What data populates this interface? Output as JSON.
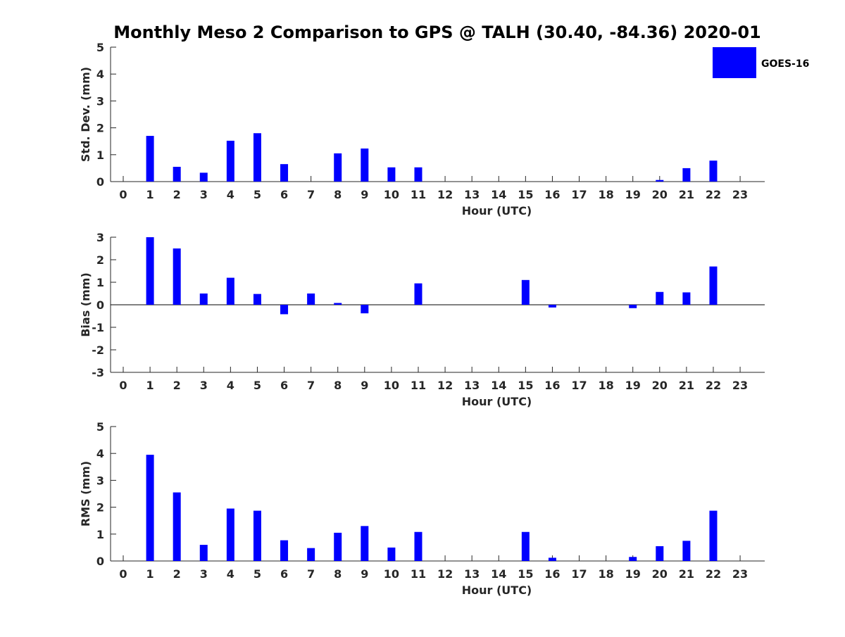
{
  "title": "Monthly Meso 2 Comparison to GPS @ TALH (30.40, -84.36) 2020-01",
  "legend": {
    "label": "GOES-16",
    "color": "#0000ff",
    "placement": "top-right"
  },
  "chart_data": [
    {
      "type": "bar",
      "xlabel": "Hour (UTC)",
      "ylabel": "Std. Dev. (mm)",
      "ylim": [
        0,
        5
      ],
      "yticks": [
        "0",
        "1",
        "2",
        "3",
        "4",
        "5"
      ],
      "categories": [
        "0",
        "1",
        "2",
        "3",
        "4",
        "5",
        "6",
        "7",
        "8",
        "9",
        "10",
        "11",
        "12",
        "13",
        "14",
        "15",
        "16",
        "17",
        "18",
        "19",
        "20",
        "21",
        "22",
        "23"
      ],
      "series": [
        {
          "name": "GOES-16",
          "values": [
            null,
            1.7,
            0.55,
            0.33,
            1.52,
            1.8,
            0.65,
            null,
            1.05,
            1.23,
            0.53,
            0.53,
            null,
            null,
            null,
            null,
            null,
            null,
            null,
            null,
            0.06,
            0.5,
            0.78,
            null
          ]
        }
      ]
    },
    {
      "type": "bar",
      "xlabel": "Hour (UTC)",
      "ylabel": "Bias (mm)",
      "ylim": [
        -3,
        3
      ],
      "yticks": [
        "-3",
        "-2",
        "-1",
        "0",
        "1",
        "2",
        "3"
      ],
      "zero_line": true,
      "categories": [
        "0",
        "1",
        "2",
        "3",
        "4",
        "5",
        "6",
        "7",
        "8",
        "9",
        "10",
        "11",
        "12",
        "13",
        "14",
        "15",
        "16",
        "17",
        "18",
        "19",
        "20",
        "21",
        "22",
        "23"
      ],
      "series": [
        {
          "name": "GOES-16",
          "values": [
            null,
            3.0,
            2.5,
            0.5,
            1.2,
            0.48,
            -0.42,
            0.5,
            0.08,
            -0.38,
            null,
            0.95,
            null,
            null,
            null,
            1.1,
            -0.12,
            null,
            null,
            -0.15,
            0.57,
            0.55,
            1.7,
            null
          ]
        }
      ]
    },
    {
      "type": "bar",
      "xlabel": "Hour (UTC)",
      "ylabel": "RMS (mm)",
      "ylim": [
        0,
        5
      ],
      "yticks": [
        "0",
        "1",
        "2",
        "3",
        "4",
        "5"
      ],
      "categories": [
        "0",
        "1",
        "2",
        "3",
        "4",
        "5",
        "6",
        "7",
        "8",
        "9",
        "10",
        "11",
        "12",
        "13",
        "14",
        "15",
        "16",
        "17",
        "18",
        "19",
        "20",
        "21",
        "22",
        "23"
      ],
      "series": [
        {
          "name": "GOES-16",
          "values": [
            null,
            3.95,
            2.55,
            0.6,
            1.95,
            1.87,
            0.77,
            0.48,
            1.05,
            1.3,
            0.5,
            1.08,
            null,
            null,
            null,
            1.08,
            0.12,
            null,
            null,
            0.15,
            0.55,
            0.75,
            1.87,
            null
          ]
        }
      ]
    }
  ]
}
